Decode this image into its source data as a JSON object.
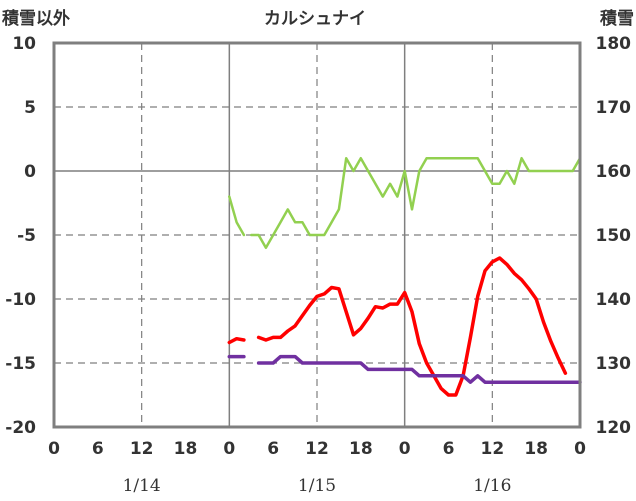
{
  "chart_data": {
    "type": "line",
    "title": "カルシュナイ",
    "left_axis_label": "積雪以外",
    "right_axis_label": "積雪",
    "left_ylim": [
      -20,
      10
    ],
    "left_ticks": [
      10,
      5,
      0,
      -5,
      -10,
      -15,
      -20
    ],
    "right_ylim": [
      120,
      180
    ],
    "right_ticks": [
      180,
      170,
      160,
      150,
      140,
      130,
      120
    ],
    "x_range_hours": [
      0,
      72
    ],
    "x_tick_labels": [
      "0",
      "6",
      "12",
      "18",
      "0",
      "6",
      "12",
      "18",
      "0",
      "6",
      "12",
      "18",
      "0"
    ],
    "date_labels": [
      {
        "text": "1/14",
        "hour": 12
      },
      {
        "text": "1/15",
        "hour": 36
      },
      {
        "text": "1/16",
        "hour": 60
      }
    ],
    "grid": true,
    "series": [
      {
        "color": "#92d050",
        "axis": "left",
        "width": 2.5,
        "segments": [
          [
            [
              24,
              -2
            ],
            [
              25,
              -4
            ],
            [
              26,
              -5
            ]
          ],
          [
            [
              27,
              -5
            ],
            [
              28,
              -5
            ],
            [
              29,
              -6
            ],
            [
              30,
              -5
            ],
            [
              31,
              -4
            ],
            [
              32,
              -3
            ],
            [
              33,
              -4
            ],
            [
              34,
              -4
            ],
            [
              35,
              -5
            ],
            [
              36,
              -5
            ],
            [
              37,
              -5
            ],
            [
              38,
              -4
            ],
            [
              39,
              -3
            ],
            [
              40,
              1
            ],
            [
              41,
              0
            ],
            [
              42,
              1
            ],
            [
              43,
              0
            ],
            [
              44,
              -1
            ],
            [
              45,
              -2
            ],
            [
              46,
              -1
            ],
            [
              47,
              -2
            ],
            [
              48,
              0
            ],
            [
              49,
              -3
            ],
            [
              50,
              0
            ],
            [
              51,
              1
            ],
            [
              52,
              1
            ],
            [
              53,
              1
            ],
            [
              54,
              1
            ],
            [
              55,
              1
            ],
            [
              56,
              1
            ],
            [
              57,
              1
            ],
            [
              58,
              1
            ],
            [
              59,
              0
            ],
            [
              60,
              -1
            ],
            [
              61,
              -1
            ],
            [
              62,
              0
            ],
            [
              63,
              -1
            ],
            [
              64,
              1
            ],
            [
              65,
              0
            ],
            [
              66,
              0
            ],
            [
              67,
              0
            ],
            [
              68,
              0
            ],
            [
              69,
              0
            ],
            [
              70,
              0
            ],
            [
              71,
              0
            ],
            [
              72,
              1
            ]
          ]
        ]
      },
      {
        "color": "#ff0000",
        "axis": "left",
        "width": 3.5,
        "segments": [
          [
            [
              24,
              -13.4
            ],
            [
              25,
              -13.1
            ],
            [
              26,
              -13.2
            ]
          ],
          [
            [
              28,
              -13
            ],
            [
              29,
              -13.2
            ],
            [
              30,
              -13
            ],
            [
              31,
              -13
            ],
            [
              32,
              -12.5
            ],
            [
              33,
              -12.1
            ],
            [
              34,
              -11.3
            ],
            [
              35,
              -10.5
            ],
            [
              36,
              -9.8
            ],
            [
              37,
              -9.6
            ],
            [
              38,
              -9.1
            ],
            [
              39,
              -9.2
            ],
            [
              40,
              -11
            ],
            [
              41,
              -12.8
            ],
            [
              42,
              -12.3
            ],
            [
              43,
              -11.5
            ],
            [
              44,
              -10.6
            ],
            [
              45,
              -10.7
            ],
            [
              46,
              -10.4
            ],
            [
              47,
              -10.4
            ],
            [
              48,
              -9.5
            ],
            [
              49,
              -11
            ],
            [
              50,
              -13.5
            ],
            [
              51,
              -15
            ],
            [
              52,
              -16
            ],
            [
              53,
              -17
            ],
            [
              54,
              -17.5
            ],
            [
              55,
              -17.5
            ],
            [
              56,
              -16
            ],
            [
              57,
              -13
            ],
            [
              58,
              -9.8
            ],
            [
              59,
              -7.8
            ],
            [
              60,
              -7.1
            ],
            [
              61,
              -6.8
            ],
            [
              62,
              -7.3
            ],
            [
              63,
              -8
            ],
            [
              64,
              -8.5
            ],
            [
              65,
              -9.2
            ],
            [
              66,
              -10
            ],
            [
              67,
              -11.8
            ],
            [
              68,
              -13.3
            ],
            [
              69,
              -14.6
            ],
            [
              70,
              -15.8
            ]
          ]
        ]
      },
      {
        "color": "#7030a0",
        "axis": "right",
        "width": 3.5,
        "segments": [
          [
            [
              24,
              131
            ],
            [
              25,
              131
            ],
            [
              26,
              131
            ]
          ],
          [
            [
              28,
              130
            ],
            [
              29,
              130
            ],
            [
              30,
              130
            ],
            [
              31,
              131
            ],
            [
              32,
              131
            ],
            [
              33,
              131
            ],
            [
              34,
              130
            ],
            [
              35,
              130
            ],
            [
              36,
              130
            ],
            [
              37,
              130
            ],
            [
              38,
              130
            ],
            [
              39,
              130
            ],
            [
              40,
              130
            ],
            [
              41,
              130
            ],
            [
              42,
              130
            ],
            [
              43,
              129
            ],
            [
              44,
              129
            ],
            [
              45,
              129
            ],
            [
              46,
              129
            ],
            [
              47,
              129
            ],
            [
              48,
              129
            ],
            [
              49,
              129
            ],
            [
              50,
              128
            ],
            [
              51,
              128
            ],
            [
              52,
              128
            ],
            [
              53,
              128
            ],
            [
              54,
              128
            ],
            [
              55,
              128
            ],
            [
              56,
              128
            ],
            [
              57,
              127
            ],
            [
              58,
              128
            ],
            [
              59,
              127
            ],
            [
              60,
              127
            ],
            [
              61,
              127
            ],
            [
              62,
              127
            ],
            [
              63,
              127
            ],
            [
              64,
              127
            ],
            [
              65,
              127
            ],
            [
              66,
              127
            ],
            [
              67,
              127
            ],
            [
              68,
              127
            ],
            [
              69,
              127
            ],
            [
              70,
              127
            ],
            [
              71,
              127
            ],
            [
              72,
              127
            ]
          ]
        ]
      }
    ]
  }
}
